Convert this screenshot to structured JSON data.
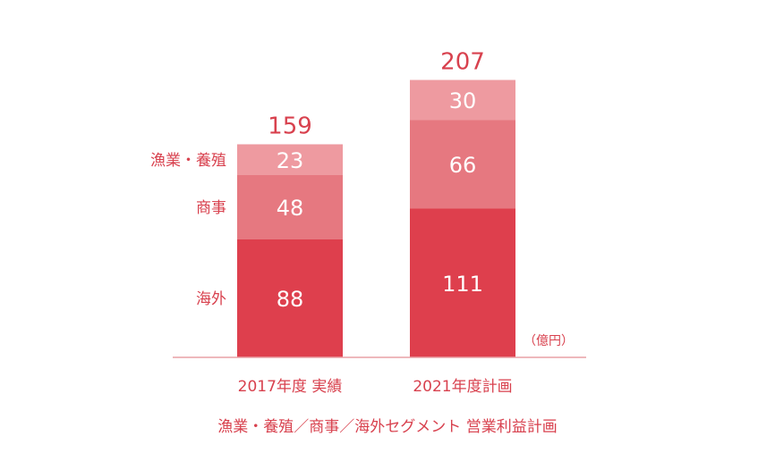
{
  "chart_data": {
    "type": "bar",
    "stacked": true,
    "categories": [
      "2017年度 実績",
      "2021年度計画"
    ],
    "series": [
      {
        "name": "海外",
        "values": [
          88,
          111
        ],
        "color": "#de3f4d"
      },
      {
        "name": "商事",
        "values": [
          48,
          66
        ],
        "color": "#e67880"
      },
      {
        "name": "漁業・養殖",
        "values": [
          23,
          30
        ],
        "color": "#ee9aa0"
      }
    ],
    "totals": [
      159,
      207
    ],
    "unit": "（億円）",
    "caption": "漁業・養殖／商事／海外セグメント 営業利益計画",
    "grid": false,
    "accent_color": "#d8414e",
    "axis_color": "#e8a0a6"
  }
}
